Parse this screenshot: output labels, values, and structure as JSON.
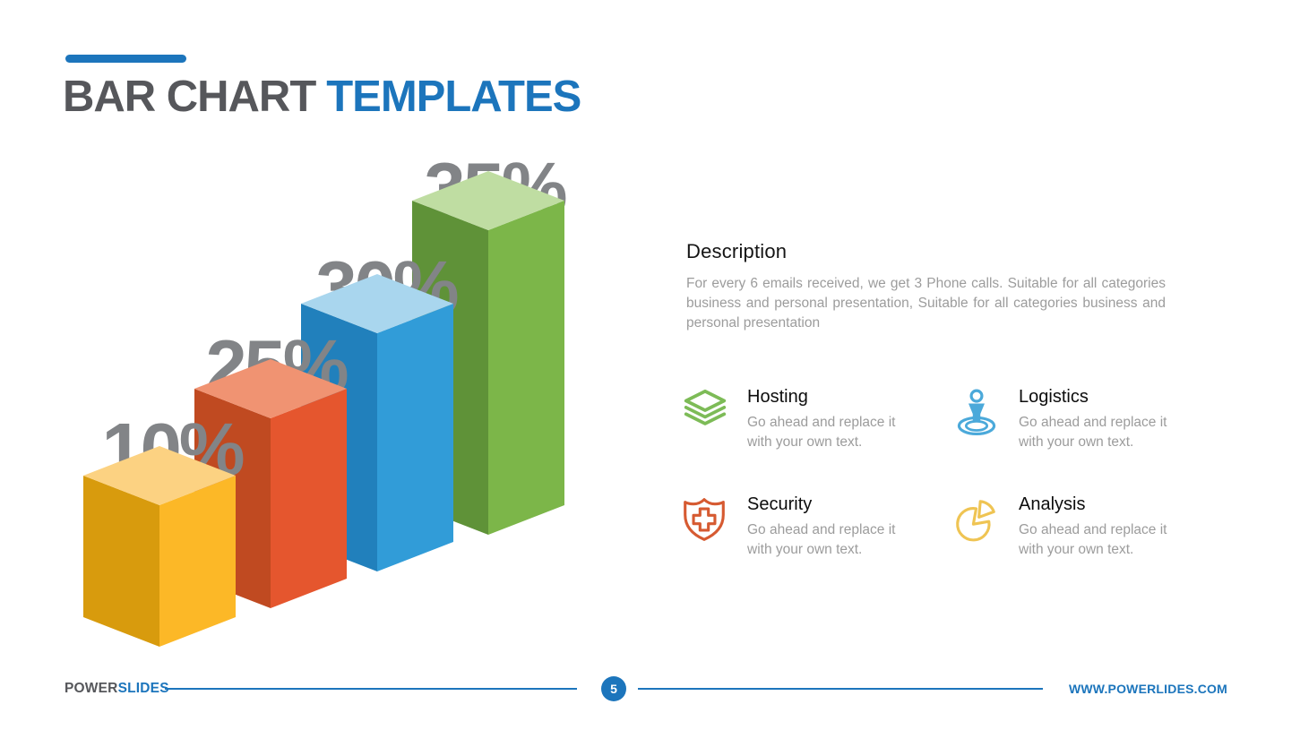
{
  "header": {
    "title_dark": "BAR CHART",
    "title_accent": "TEMPLATES"
  },
  "chart_data": {
    "type": "bar",
    "style": "3d-isometric",
    "unit": "%",
    "values": [
      10,
      25,
      30,
      35
    ],
    "label_color": "#828487",
    "bars": [
      {
        "label": "10%",
        "value": 10,
        "color_front": "#FCB827",
        "color_side": "#D89B0D",
        "color_top": "#FCD282"
      },
      {
        "label": "25%",
        "value": 25,
        "color_front": "#E5562E",
        "color_side": "#C04A21",
        "color_top": "#F09372"
      },
      {
        "label": "30%",
        "value": 30,
        "color_front": "#319CD8",
        "color_side": "#2180BC",
        "color_top": "#A9D6EE"
      },
      {
        "label": "35%",
        "value": 35,
        "color_front": "#7CB649",
        "color_side": "#5F9238",
        "color_top": "#BFDDA2"
      }
    ]
  },
  "description": {
    "heading": "Description",
    "body": "For every 6 emails received, we get 3 Phone calls. Suitable for all categories business and personal presentation, Suitable for all categories business and personal presentation"
  },
  "features": [
    {
      "title": "Hosting",
      "body": "Go ahead and replace it with your own text.",
      "icon": "layers-icon",
      "color": "#7DBB57"
    },
    {
      "title": "Logistics",
      "body": "Go ahead and replace it with your own text.",
      "icon": "location-marker-icon",
      "color": "#4BA9DA"
    },
    {
      "title": "Security",
      "body": "Go ahead and replace it with your own text.",
      "icon": "shield-cross-icon",
      "color": "#D65A31"
    },
    {
      "title": "Analysis",
      "body": "Go ahead and replace it with your own text.",
      "icon": "pie-chart-icon",
      "color": "#EFC453"
    }
  ],
  "footer": {
    "brand_part1": "POWER",
    "brand_part2": "SLIDES",
    "page_number": "5",
    "website": "WWW.POWERLIDES.COM"
  },
  "colors": {
    "brand_blue": "#1C75BC",
    "brand_gray": "#56575B"
  }
}
